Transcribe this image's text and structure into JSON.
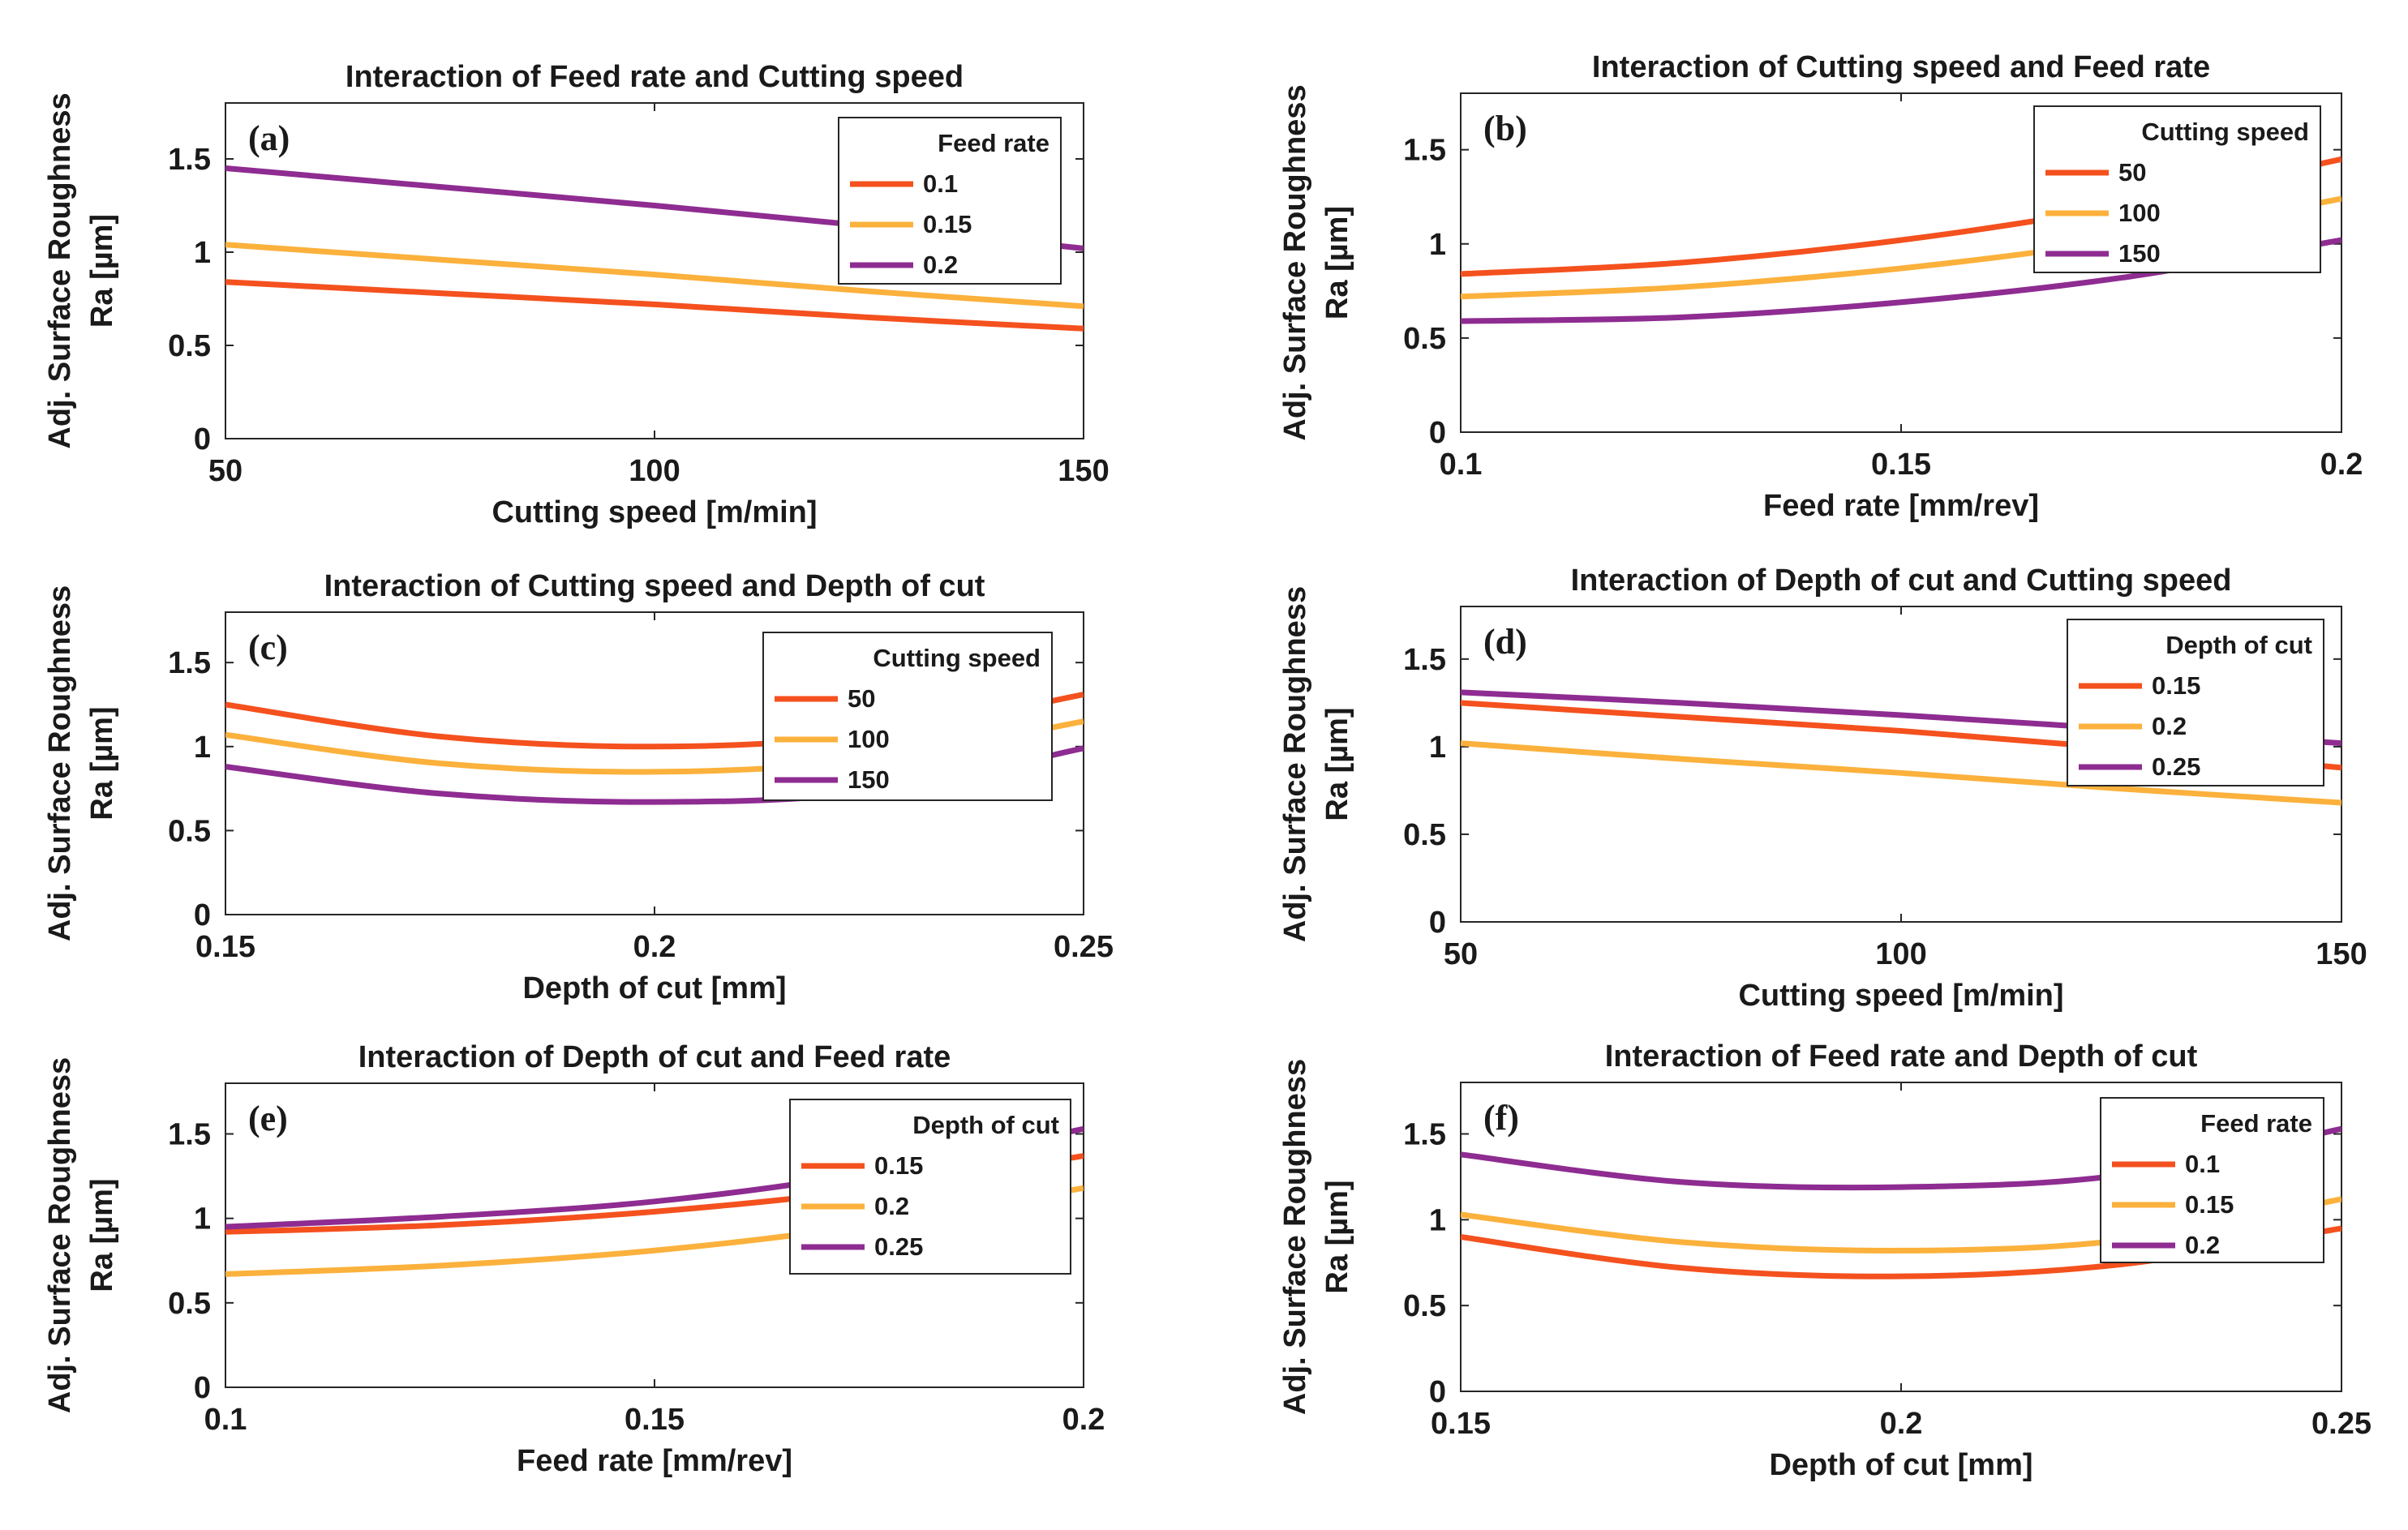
{
  "figure": {
    "y_axis_label_line1": "Adj. Surface Roughness",
    "y_axis_label_line2": "Ra [µm]"
  },
  "chart_data": [
    {
      "id": "a",
      "type": "line",
      "panel_label": "(a)",
      "title": "Interaction of Feed rate and Cutting speed",
      "xlabel": "Cutting speed [m/min]",
      "ylabel": "Adj. Surface Roughness Ra [µm]",
      "xlim": [
        50,
        150
      ],
      "ylim": [
        0,
        1.8
      ],
      "xticks": [
        50,
        100,
        150
      ],
      "xtick_labels": [
        "50",
        "100",
        "150"
      ],
      "yticks": [
        0,
        0.5,
        1,
        1.5
      ],
      "ytick_labels": [
        "0",
        "0.5",
        "1",
        "1.5"
      ],
      "legend_title": "Feed rate",
      "legend_position": "top-right",
      "x": [
        50,
        75,
        100,
        125,
        150
      ],
      "series": [
        {
          "name": "0.1",
          "color": "#f4511e",
          "values": [
            0.84,
            0.78,
            0.72,
            0.65,
            0.59
          ]
        },
        {
          "name": "0.15",
          "color": "#fbb13c",
          "values": [
            1.04,
            0.96,
            0.88,
            0.79,
            0.71
          ]
        },
        {
          "name": "0.2",
          "color": "#8e2c91",
          "values": [
            1.45,
            1.35,
            1.25,
            1.14,
            1.02
          ]
        }
      ]
    },
    {
      "id": "b",
      "type": "line",
      "panel_label": "(b)",
      "title": "Interaction of Cutting speed and Feed rate",
      "xlabel": "Feed rate [mm/rev]",
      "ylabel": "Adj. Surface Roughness Ra [µm]",
      "xlim": [
        0.1,
        0.2
      ],
      "ylim": [
        0,
        1.8
      ],
      "xticks": [
        0.1,
        0.15,
        0.2
      ],
      "xtick_labels": [
        "0.1",
        "0.15",
        "0.2"
      ],
      "yticks": [
        0,
        0.5,
        1,
        1.5
      ],
      "ytick_labels": [
        "0",
        "0.5",
        "1",
        "1.5"
      ],
      "legend_title": "Cutting speed",
      "legend_position": "top-right",
      "x": [
        0.1,
        0.125,
        0.15,
        0.175,
        0.2
      ],
      "series": [
        {
          "name": "50",
          "color": "#f4511e",
          "values": [
            0.84,
            0.9,
            1.02,
            1.2,
            1.45
          ]
        },
        {
          "name": "100",
          "color": "#fbb13c",
          "values": [
            0.72,
            0.77,
            0.87,
            1.02,
            1.24
          ]
        },
        {
          "name": "150",
          "color": "#8e2c91",
          "values": [
            0.59,
            0.61,
            0.69,
            0.82,
            1.02
          ]
        }
      ]
    },
    {
      "id": "c",
      "type": "line",
      "panel_label": "(c)",
      "title": "Interaction of Cutting speed and Depth of cut",
      "xlabel": "Depth of cut [mm]",
      "ylabel": "Adj. Surface Roughness Ra [µm]",
      "xlim": [
        0.15,
        0.25
      ],
      "ylim": [
        0,
        1.8
      ],
      "xticks": [
        0.15,
        0.2,
        0.25
      ],
      "xtick_labels": [
        "0.15",
        "0.2",
        "0.25"
      ],
      "yticks": [
        0,
        0.5,
        1,
        1.5
      ],
      "ytick_labels": [
        "0",
        "0.5",
        "1",
        "1.5"
      ],
      "legend_title": "Cutting speed",
      "legend_position": "top-right",
      "x": [
        0.15,
        0.175,
        0.2,
        0.225,
        0.25
      ],
      "series": [
        {
          "name": "50",
          "color": "#f4511e",
          "values": [
            1.25,
            1.06,
            1.0,
            1.07,
            1.31
          ]
        },
        {
          "name": "100",
          "color": "#fbb13c",
          "values": [
            1.07,
            0.9,
            0.85,
            0.92,
            1.15
          ]
        },
        {
          "name": "150",
          "color": "#8e2c91",
          "values": [
            0.88,
            0.72,
            0.67,
            0.73,
            0.99
          ]
        }
      ]
    },
    {
      "id": "d",
      "type": "line",
      "panel_label": "(d)",
      "title": "Interaction of Depth of cut and Cutting speed",
      "xlabel": "Cutting speed [m/min]",
      "ylabel": "Adj. Surface Roughness Ra [µm]",
      "xlim": [
        50,
        150
      ],
      "ylim": [
        0,
        1.8
      ],
      "xticks": [
        50,
        100,
        150
      ],
      "xtick_labels": [
        "50",
        "100",
        "150"
      ],
      "yticks": [
        0,
        0.5,
        1,
        1.5
      ],
      "ytick_labels": [
        "0",
        "0.5",
        "1",
        "1.5"
      ],
      "legend_title": "Depth of cut",
      "legend_position": "top-right",
      "x": [
        50,
        75,
        100,
        125,
        150
      ],
      "series": [
        {
          "name": "0.15",
          "color": "#f4511e",
          "values": [
            1.25,
            1.17,
            1.09,
            0.99,
            0.88
          ]
        },
        {
          "name": "0.2",
          "color": "#fbb13c",
          "values": [
            1.02,
            0.93,
            0.85,
            0.76,
            0.68
          ]
        },
        {
          "name": "0.25",
          "color": "#8e2c91",
          "values": [
            1.31,
            1.25,
            1.18,
            1.1,
            1.02
          ]
        }
      ]
    },
    {
      "id": "e",
      "type": "line",
      "panel_label": "(e)",
      "title": "Interaction of Depth of cut and Feed rate",
      "xlabel": "Feed rate [mm/rev]",
      "ylabel": "Adj. Surface Roughness Ra [µm]",
      "xlim": [
        0.1,
        0.2
      ],
      "ylim": [
        0,
        1.8
      ],
      "xticks": [
        0.1,
        0.15,
        0.2
      ],
      "xtick_labels": [
        "0.1",
        "0.15",
        "0.2"
      ],
      "yticks": [
        0,
        0.5,
        1,
        1.5
      ],
      "ytick_labels": [
        "0",
        "0.5",
        "1",
        "1.5"
      ],
      "legend_title": "Depth of cut",
      "legend_position": "top-right",
      "x": [
        0.1,
        0.125,
        0.15,
        0.175,
        0.2
      ],
      "series": [
        {
          "name": "0.15",
          "color": "#f4511e",
          "values": [
            0.92,
            0.96,
            1.04,
            1.17,
            1.37
          ]
        },
        {
          "name": "0.2",
          "color": "#fbb13c",
          "values": [
            0.67,
            0.72,
            0.81,
            0.96,
            1.18
          ]
        },
        {
          "name": "0.25",
          "color": "#8e2c91",
          "values": [
            0.95,
            1.01,
            1.1,
            1.27,
            1.53
          ]
        }
      ]
    },
    {
      "id": "f",
      "type": "line",
      "panel_label": "(f)",
      "title": "Interaction of Feed rate and Depth of cut",
      "xlabel": "Depth of cut [mm]",
      "ylabel": "Adj. Surface Roughness Ra [µm]",
      "xlim": [
        0.15,
        0.25
      ],
      "ylim": [
        0,
        1.8
      ],
      "xticks": [
        0.15,
        0.2,
        0.25
      ],
      "xtick_labels": [
        "0.15",
        "0.2",
        "0.25"
      ],
      "yticks": [
        0,
        0.5,
        1,
        1.5
      ],
      "ytick_labels": [
        "0",
        "0.5",
        "1",
        "1.5"
      ],
      "legend_title": "Feed rate",
      "legend_position": "top-right",
      "x": [
        0.15,
        0.175,
        0.2,
        0.225,
        0.25
      ],
      "series": [
        {
          "name": "0.1",
          "color": "#f4511e",
          "values": [
            0.9,
            0.72,
            0.67,
            0.74,
            0.95
          ]
        },
        {
          "name": "0.15",
          "color": "#fbb13c",
          "values": [
            1.03,
            0.87,
            0.82,
            0.88,
            1.12
          ]
        },
        {
          "name": "0.2",
          "color": "#8e2c91",
          "values": [
            1.38,
            1.22,
            1.19,
            1.26,
            1.53
          ]
        }
      ]
    }
  ]
}
